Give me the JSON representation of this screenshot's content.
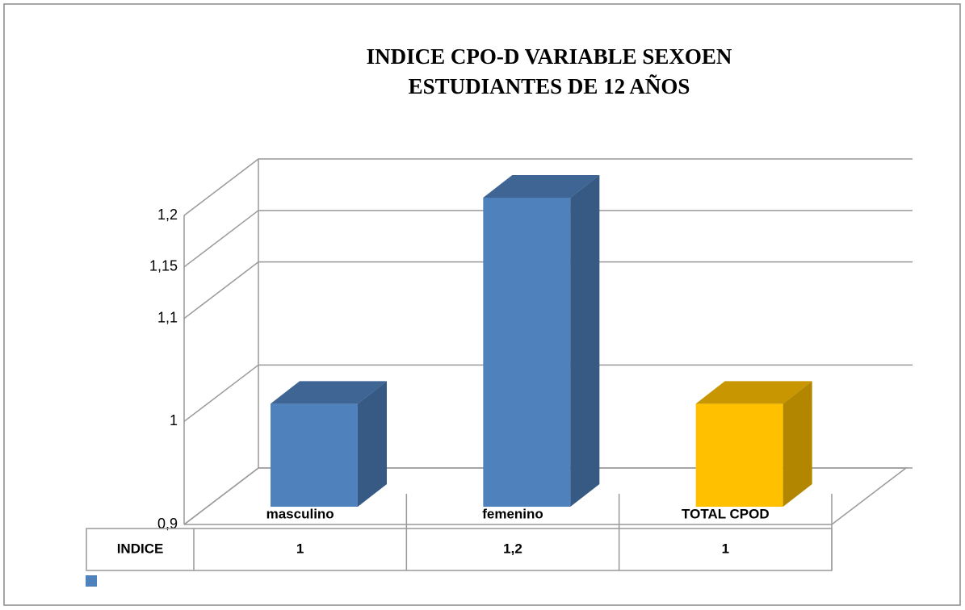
{
  "chart_data": {
    "type": "bar3d",
    "title": [
      "INDICE CPO-D VARIABLE SEXOEN",
      "ESTUDIANTES DE 12 AÑOS"
    ],
    "categories": [
      "masculino",
      "femenino",
      "TOTAL CPOD"
    ],
    "series": [
      {
        "name": "INDICE",
        "color": "#4f81bd",
        "colors": [
          "#4f81bd",
          "#4f81bd",
          "#ffc000"
        ],
        "values": [
          1,
          1.2,
          1
        ],
        "value_labels": [
          "1",
          "1,2",
          "1"
        ]
      }
    ],
    "ylim": [
      0.9,
      1.2
    ],
    "yticks": [
      {
        "value": 0.9,
        "label": "0,9"
      },
      1,
      {
        "value": 1.1,
        "label": "1,1"
      },
      {
        "value": 1.15,
        "label": "1,15"
      },
      {
        "value": 1.2,
        "label": "1,2"
      }
    ],
    "grid": true,
    "data_table": true,
    "legend": "bottom-left"
  }
}
